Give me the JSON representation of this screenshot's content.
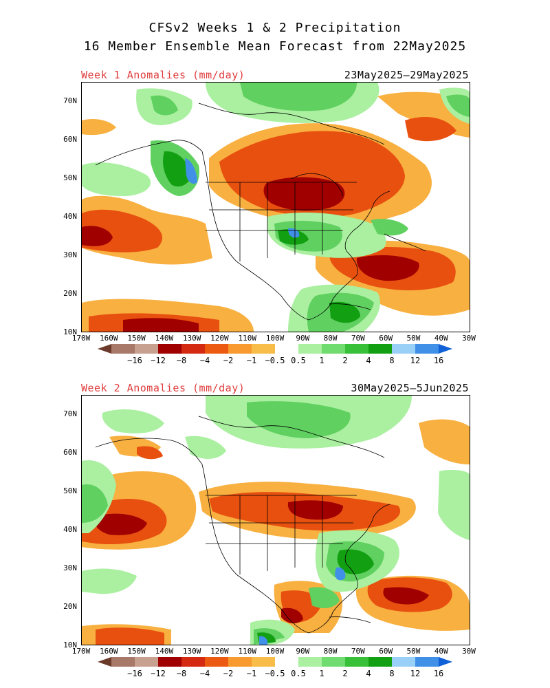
{
  "title": {
    "line1": "CFSv2 Weeks 1 & 2 Precipitation",
    "line2": "16 Member Ensemble Mean Forecast from 22May2025"
  },
  "panels": [
    {
      "label": "Week 1 Anomalies (mm/day)",
      "dates": "23May2025–29May2025"
    },
    {
      "label": "Week 2 Anomalies (mm/day)",
      "dates": "30May2025–5Jun2025"
    }
  ],
  "axes": {
    "lat_labels": [
      "70N",
      "60N",
      "50N",
      "40N",
      "30N",
      "20N",
      "10N"
    ],
    "lon_labels": [
      "170W",
      "160W",
      "150W",
      "140W",
      "130W",
      "120W",
      "110W",
      "100W",
      "90W",
      "80W",
      "70W",
      "60W",
      "50W",
      "40W",
      "30W"
    ]
  },
  "colorbar": {
    "labels": [
      "−16",
      "−12",
      "−8",
      "−4",
      "−2",
      "−1",
      "−0.5",
      "0.5",
      "1",
      "2",
      "4",
      "8",
      "12",
      "16"
    ],
    "colors": [
      "#6b3a2a",
      "#a87868",
      "#c8a090",
      "#a00000",
      "#d42a12",
      "#ec5a12",
      "#f89a30",
      "#f8bc48",
      "#ffffff",
      "#aaf0a0",
      "#70dc70",
      "#38c038",
      "#12a012",
      "#98d0f8",
      "#4090e8",
      "#1060d8"
    ]
  },
  "legend_colors": {
    "dry_strong": "#a00000",
    "dry": "#e85010",
    "dry_weak": "#f8b040",
    "wet_weak": "#aaf0a0",
    "wet": "#60d060",
    "wet_strong": "#12a012",
    "very_wet": "#4090e8"
  }
}
